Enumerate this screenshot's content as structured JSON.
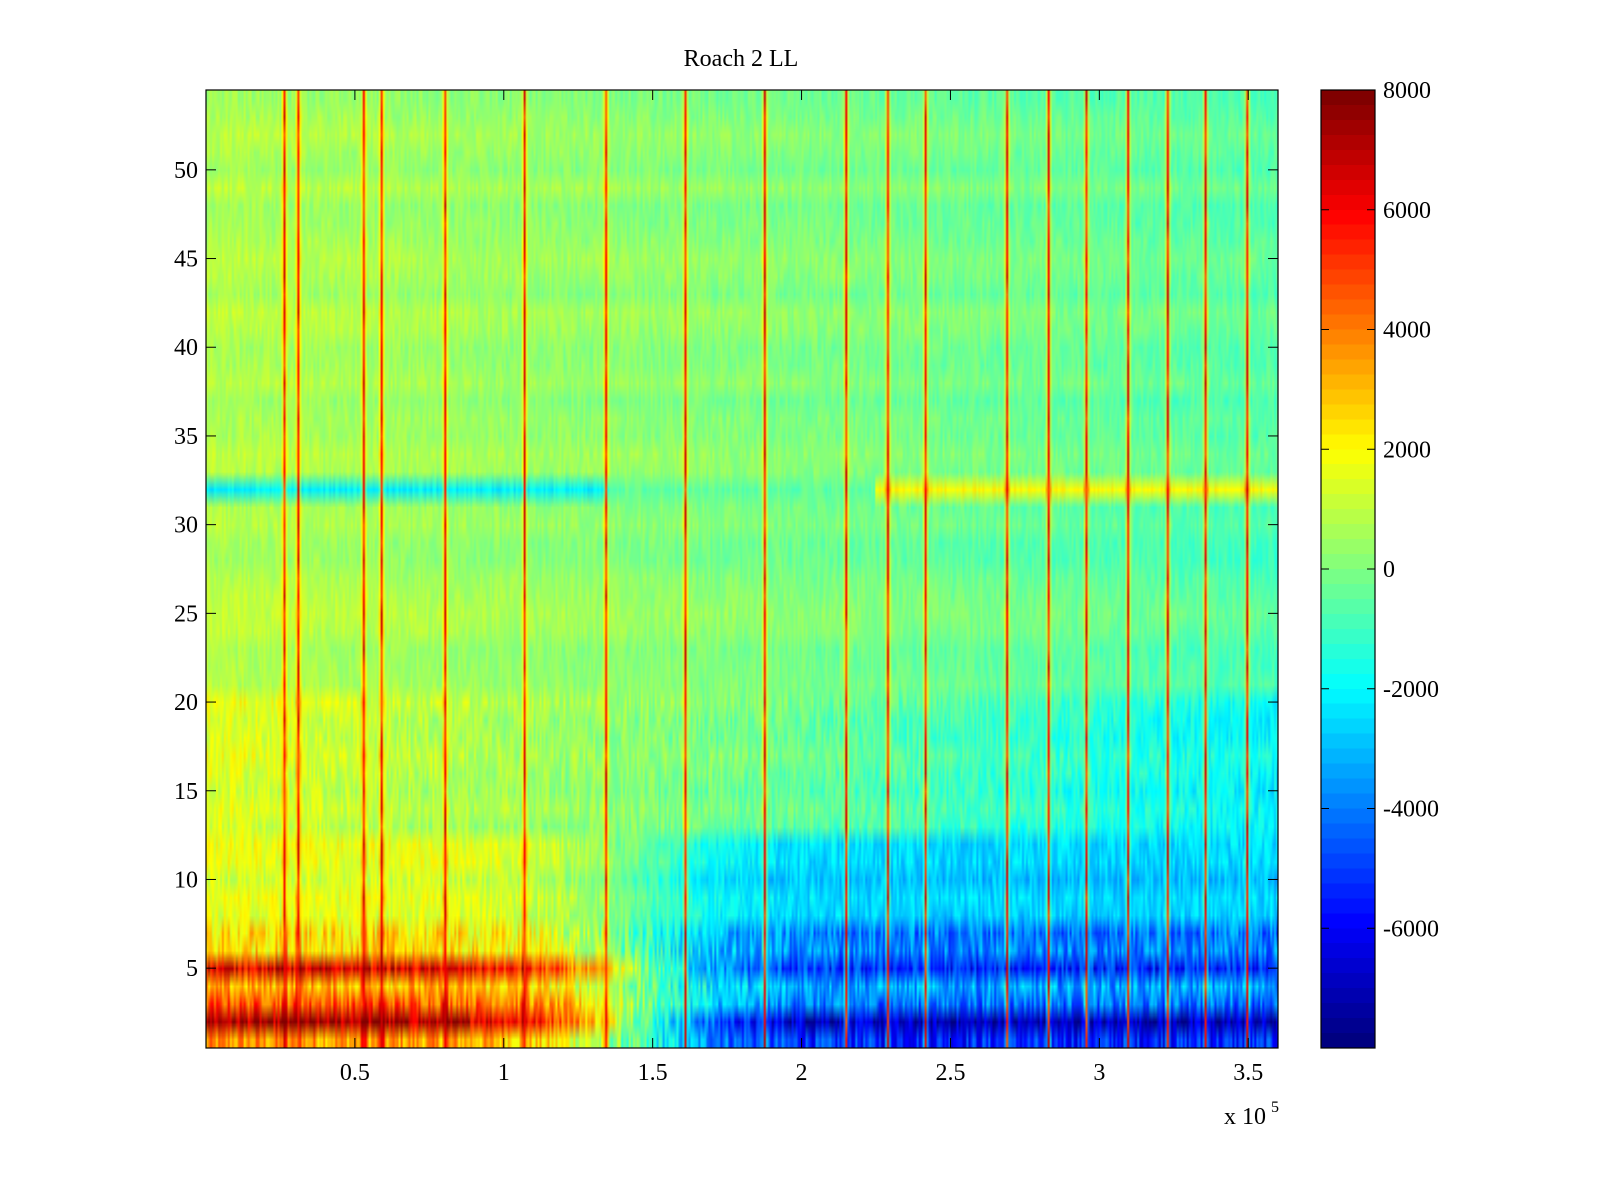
{
  "chart_data": {
    "type": "heatmap",
    "title": "Roach 2 LL",
    "xlabel": "",
    "ylabel": "",
    "x_multiplier_label": {
      "base": "x 10",
      "exponent": "5"
    },
    "xlim": [
      0,
      3.6
    ],
    "ylim": [
      0.5,
      54.5
    ],
    "x_ticks": [
      0.5,
      1,
      1.5,
      2,
      2.5,
      3,
      3.5
    ],
    "x_tick_labels": [
      "0.5",
      "1",
      "1.5",
      "2",
      "2.5",
      "3",
      "3.5"
    ],
    "y_ticks": [
      5,
      10,
      15,
      20,
      25,
      30,
      35,
      40,
      45,
      50
    ],
    "y_tick_labels": [
      "5",
      "10",
      "15",
      "20",
      "25",
      "30",
      "35",
      "40",
      "45",
      "50"
    ],
    "colorbar": {
      "colormap": "jet",
      "range": [
        -8000,
        8000
      ],
      "ticks": [
        8000,
        6000,
        4000,
        2000,
        0,
        -2000,
        -4000,
        -6000
      ],
      "tick_labels": [
        "8000",
        "6000",
        "4000",
        "2000",
        "0",
        "-2000",
        "-4000",
        "-6000"
      ]
    },
    "rows": 54,
    "row_baseline": [
      {
        "row_range": [
          1,
          1
        ],
        "left": 3500,
        "right": -5500
      },
      {
        "row_range": [
          2,
          2
        ],
        "left": 7500,
        "right": -7000
      },
      {
        "row_range": [
          3,
          3
        ],
        "left": 4500,
        "right": -4500
      },
      {
        "row_range": [
          4,
          4
        ],
        "left": 3000,
        "right": -3500
      },
      {
        "row_range": [
          5,
          5
        ],
        "left": 6500,
        "right": -5500
      },
      {
        "row_range": [
          6,
          7
        ],
        "left": 2500,
        "right": -4000
      },
      {
        "row_range": [
          8,
          12
        ],
        "left": 1500,
        "right": -2800
      },
      {
        "row_range": [
          13,
          20
        ],
        "left": 1700,
        "right": -2000
      },
      {
        "row_range": [
          21,
          31
        ],
        "left": 900,
        "right": -800
      },
      {
        "row_range": [
          32,
          32
        ],
        "left": -2000,
        "right": 2200
      },
      {
        "row_range": [
          33,
          54
        ],
        "left": 800,
        "right": -600
      }
    ],
    "vertical_spikes_x": [
      0.26,
      0.31,
      0.53,
      0.59,
      0.8,
      1.07,
      1.34,
      1.61,
      1.88,
      2.15,
      2.29,
      2.42,
      2.69,
      2.83,
      2.96,
      3.1,
      3.23,
      3.36,
      3.5
    ],
    "colors": {
      "axes": "#000000",
      "background": "#ffffff"
    }
  }
}
